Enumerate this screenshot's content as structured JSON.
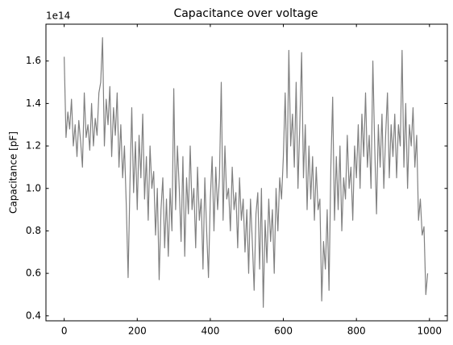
{
  "chart_data": {
    "type": "line",
    "title": "Capacitance over voltage",
    "y_label": "Capacitance [pF]",
    "y_offset_label": "1e14",
    "x": [
      0,
      5,
      10,
      15,
      20,
      25,
      30,
      35,
      40,
      45,
      50,
      55,
      60,
      65,
      70,
      75,
      80,
      85,
      90,
      95,
      100,
      105,
      110,
      115,
      120,
      125,
      130,
      135,
      140,
      145,
      150,
      155,
      160,
      165,
      170,
      175,
      180,
      185,
      190,
      195,
      200,
      205,
      210,
      215,
      220,
      225,
      230,
      235,
      240,
      245,
      250,
      255,
      260,
      265,
      270,
      275,
      280,
      285,
      290,
      295,
      300,
      305,
      310,
      315,
      320,
      325,
      330,
      335,
      340,
      345,
      350,
      355,
      360,
      365,
      370,
      375,
      380,
      385,
      390,
      395,
      400,
      405,
      410,
      415,
      420,
      425,
      430,
      435,
      440,
      445,
      450,
      455,
      460,
      465,
      470,
      475,
      480,
      485,
      490,
      495,
      500,
      505,
      510,
      515,
      520,
      525,
      530,
      535,
      540,
      545,
      550,
      555,
      560,
      565,
      570,
      575,
      580,
      585,
      590,
      595,
      600,
      605,
      610,
      615,
      620,
      625,
      630,
      635,
      640,
      645,
      650,
      655,
      660,
      665,
      670,
      675,
      680,
      685,
      690,
      695,
      700,
      705,
      710,
      715,
      720,
      725,
      730,
      735,
      740,
      745,
      750,
      755,
      760,
      765,
      770,
      775,
      780,
      785,
      790,
      795,
      800,
      805,
      810,
      815,
      820,
      825,
      830,
      835,
      840,
      845,
      850,
      855,
      860,
      865,
      870,
      875,
      880,
      885,
      890,
      895,
      900,
      905,
      910,
      915,
      920,
      925,
      930,
      935,
      940,
      945,
      950,
      955,
      960,
      965,
      970,
      975,
      980,
      985,
      990,
      995
    ],
    "series": [
      {
        "name": "Capacitance",
        "color": "#808080",
        "values": [
          1.62,
          1.24,
          1.36,
          1.28,
          1.42,
          1.2,
          1.3,
          1.15,
          1.32,
          1.22,
          1.1,
          1.45,
          1.24,
          1.3,
          1.18,
          1.4,
          1.2,
          1.33,
          1.25,
          1.45,
          1.5,
          1.71,
          1.2,
          1.42,
          1.3,
          1.48,
          1.15,
          1.38,
          1.25,
          1.45,
          1.1,
          1.3,
          1.05,
          1.2,
          0.92,
          0.58,
          1.02,
          1.38,
          0.98,
          1.22,
          0.9,
          1.25,
          1.05,
          1.35,
          0.95,
          1.15,
          0.85,
          1.2,
          1.0,
          1.08,
          0.78,
          1.0,
          0.57,
          0.9,
          1.05,
          0.72,
          0.95,
          0.68,
          1.0,
          0.8,
          1.47,
          0.9,
          1.2,
          1.0,
          0.75,
          1.15,
          0.68,
          1.05,
          0.88,
          1.2,
          0.9,
          1.0,
          0.72,
          1.1,
          0.85,
          0.95,
          0.62,
          1.05,
          0.8,
          0.58,
          0.95,
          1.15,
          0.8,
          1.1,
          0.9,
          1.05,
          1.5,
          0.85,
          1.2,
          0.95,
          1.0,
          0.8,
          1.1,
          0.9,
          0.98,
          0.72,
          1.05,
          0.85,
          0.95,
          0.7,
          0.9,
          0.6,
          0.95,
          0.75,
          0.52,
          0.88,
          0.98,
          0.62,
          1.0,
          0.44,
          0.85,
          0.65,
          0.95,
          0.75,
          0.9,
          0.6,
          1.0,
          0.8,
          1.05,
          0.95,
          1.15,
          1.45,
          1.05,
          1.65,
          1.2,
          1.35,
          1.1,
          1.5,
          1.0,
          1.3,
          1.64,
          1.05,
          1.3,
          0.9,
          1.2,
          0.95,
          1.15,
          0.85,
          1.1,
          0.9,
          0.95,
          0.47,
          0.75,
          0.62,
          0.9,
          0.52,
          1.1,
          1.43,
          0.85,
          1.15,
          0.9,
          1.2,
          0.8,
          1.05,
          0.95,
          1.25,
          1.0,
          1.1,
          0.85,
          1.2,
          1.05,
          1.3,
          1.0,
          1.35,
          1.15,
          1.45,
          1.1,
          1.25,
          1.0,
          1.6,
          1.2,
          0.88,
          1.3,
          1.1,
          1.35,
          1.0,
          1.25,
          1.45,
          1.05,
          1.3,
          1.15,
          1.35,
          1.05,
          1.3,
          1.2,
          1.65,
          1.1,
          1.4,
          1.0,
          1.3,
          1.2,
          1.38,
          1.1,
          1.25,
          0.85,
          0.95,
          0.78,
          0.82,
          0.5,
          0.6
        ]
      }
    ],
    "xlim": [
      -49.95,
      1048.95
    ],
    "ylim": [
      0.3765,
      1.7735
    ],
    "xticks": [
      0,
      200,
      400,
      600,
      800,
      1000
    ],
    "yticks": [
      0.4,
      0.6,
      0.8,
      {
        "value": 1,
        "label": "1.0"
      },
      1.2,
      1.4,
      1.6
    ],
    "grid": false,
    "tick_direction": "in"
  }
}
